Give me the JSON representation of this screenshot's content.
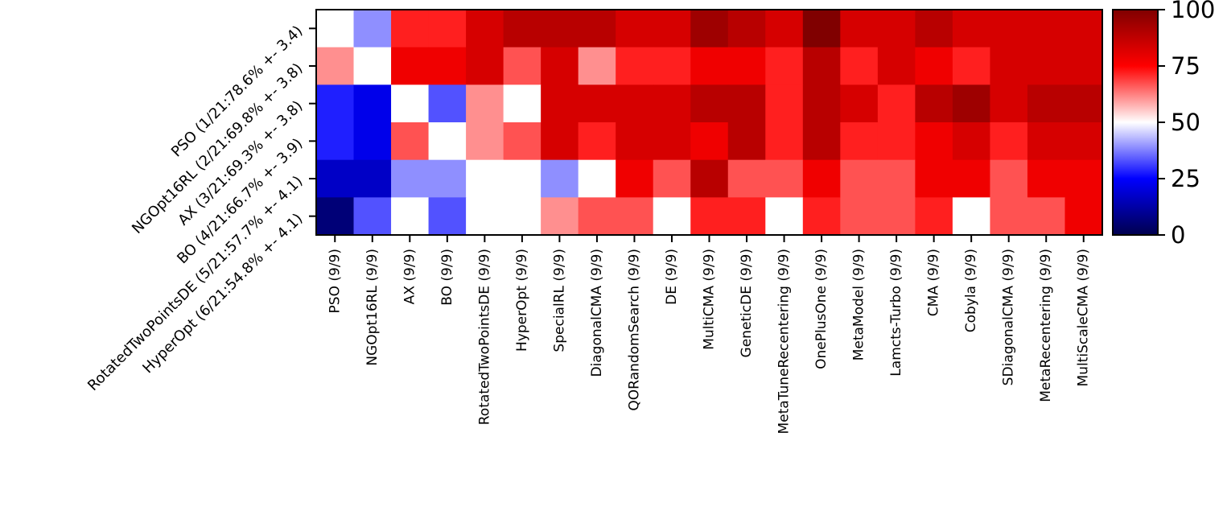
{
  "chart_data": {
    "type": "heatmap",
    "title": "",
    "xlabel": "",
    "ylabel": "",
    "row_labels": [
      "PSO (1/21:78.6% +- 3.4)",
      "NGOpt16RL (2/21:69.8% +- 3.8)",
      "AX (3/21:69.3% +- 3.8)",
      "BO (4/21:66.7% +- 3.9)",
      "RotatedTwoPointsDE (5/21:57.7% +- 4.1)",
      "HyperOpt (6/21:54.8% +- 4.1)"
    ],
    "column_labels": [
      "PSO (9/9)",
      "NGOpt16RL (9/9)",
      "AX (9/9)",
      "BO (9/9)",
      "RotatedTwoPointsDE (9/9)",
      "HyperOpt (9/9)",
      "SpecialRL (9/9)",
      "DiagonalCMA (9/9)",
      "QORandomSearch (9/9)",
      "DE (9/9)",
      "MultiCMA (9/9)",
      "GeneticDE (9/9)",
      "MetaTuneRecentering (9/9)",
      "OnePlusOne (9/9)",
      "MetaModel (9/9)",
      "Lamcts-Turbo (9/9)",
      "CMA (9/9)",
      "Cobyla (9/9)",
      "SDiagonalCMA (9/9)",
      "MetaRecentering (9/9)",
      "MultiScaleCMA (9/9)"
    ],
    "values": [
      [
        50,
        39,
        72,
        72,
        83,
        89,
        89,
        89,
        83,
        83,
        94,
        89,
        83,
        100,
        83,
        83,
        89,
        83,
        83,
        83,
        83
      ],
      [
        61,
        50,
        78,
        78,
        83,
        67,
        83,
        61,
        72,
        72,
        78,
        78,
        72,
        89,
        72,
        83,
        78,
        72,
        83,
        83,
        83
      ],
      [
        28,
        22,
        50,
        33,
        61,
        50,
        83,
        83,
        83,
        83,
        89,
        89,
        72,
        89,
        83,
        72,
        89,
        94,
        83,
        89,
        89
      ],
      [
        28,
        22,
        67,
        50,
        61,
        67,
        83,
        72,
        83,
        83,
        78,
        89,
        72,
        89,
        72,
        72,
        78,
        83,
        72,
        83,
        83
      ],
      [
        17,
        17,
        39,
        39,
        50,
        50,
        39,
        50,
        78,
        67,
        89,
        67,
        67,
        78,
        67,
        67,
        78,
        78,
        67,
        78,
        78
      ],
      [
        6,
        33,
        50,
        33,
        50,
        50,
        61,
        67,
        67,
        50,
        72,
        72,
        50,
        72,
        67,
        67,
        72,
        50,
        67,
        67,
        78
      ]
    ],
    "colormap": "seismic",
    "vmin": 0,
    "vmax": 100,
    "colorbar_ticks": [
      0,
      25,
      50,
      75,
      100
    ]
  }
}
